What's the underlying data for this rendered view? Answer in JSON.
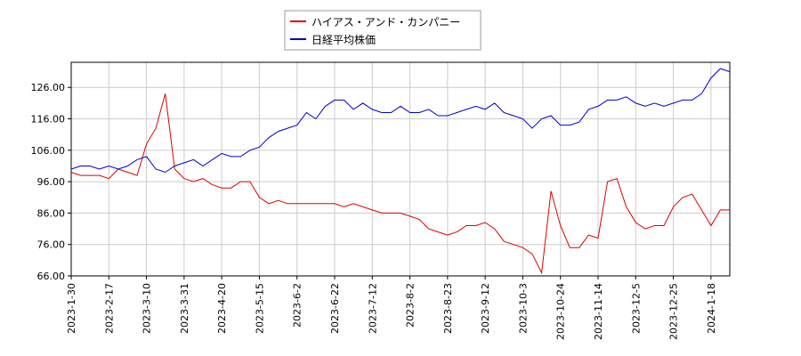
{
  "chart_data": {
    "type": "line",
    "categories": [
      "2023-1-30",
      null,
      null,
      null,
      "2023-2-17",
      null,
      null,
      null,
      "2023-3-10",
      null,
      null,
      null,
      "2023-3-31",
      null,
      null,
      null,
      "2023-4-20",
      null,
      null,
      null,
      "2023-5-15",
      null,
      null,
      null,
      "2023-6-2",
      null,
      null,
      null,
      "2023-6-22",
      null,
      null,
      null,
      "2023-7-12",
      null,
      null,
      null,
      "2023-8-2",
      null,
      null,
      null,
      "2023-8-23",
      null,
      null,
      null,
      "2023-9-12",
      null,
      null,
      null,
      "2023-10-3",
      null,
      null,
      null,
      "2023-10-24",
      null,
      null,
      null,
      "2023-11-14",
      null,
      null,
      null,
      "2023-12-5",
      null,
      null,
      null,
      "2023-12-25",
      null,
      null,
      null,
      "2024-1-18",
      null,
      null
    ],
    "series": [
      {
        "name": "ハイアス・アンド・カンパニー",
        "color": "#dd0000",
        "values": [
          99,
          98,
          98,
          98,
          97,
          100,
          99,
          98,
          108,
          113,
          124,
          100,
          97,
          96,
          97,
          95,
          94,
          94,
          96,
          96,
          91,
          89,
          90,
          89,
          89,
          89,
          89,
          89,
          89,
          88,
          89,
          88,
          87,
          86,
          86,
          86,
          85,
          84,
          81,
          80,
          79,
          80,
          82,
          82,
          83,
          81,
          77,
          76,
          75,
          73,
          67,
          93,
          82,
          75,
          75,
          79,
          78,
          96,
          97,
          88,
          83,
          81,
          82,
          82,
          88,
          91,
          92,
          87,
          82,
          87,
          87
        ]
      },
      {
        "name": "日経平均株価",
        "color": "#0000cc",
        "values": [
          100,
          101,
          101,
          100,
          101,
          100,
          101,
          103,
          104,
          100,
          99,
          101,
          102,
          103,
          101,
          103,
          105,
          104,
          104,
          106,
          107,
          110,
          112,
          113,
          114,
          118,
          116,
          120,
          122,
          122,
          119,
          121,
          119,
          118,
          118,
          120,
          118,
          118,
          119,
          117,
          117,
          118,
          119,
          120,
          119,
          121,
          118,
          117,
          116,
          113,
          116,
          117,
          114,
          114,
          115,
          119,
          120,
          122,
          122,
          123,
          121,
          120,
          121,
          120,
          121,
          122,
          122,
          124,
          129,
          132,
          131
        ]
      }
    ],
    "ylim": [
      66,
      134
    ],
    "yticks": [
      {
        "value": 66,
        "label": "66.00"
      },
      {
        "value": 76,
        "label": "76.00"
      },
      {
        "value": 86,
        "label": "86.00"
      },
      {
        "value": 96,
        "label": "96.00"
      },
      {
        "value": 106,
        "label": "106.00"
      },
      {
        "value": 116,
        "label": "116.00"
      },
      {
        "value": 126,
        "label": "126.00"
      }
    ],
    "grid": true,
    "legend": "top"
  }
}
